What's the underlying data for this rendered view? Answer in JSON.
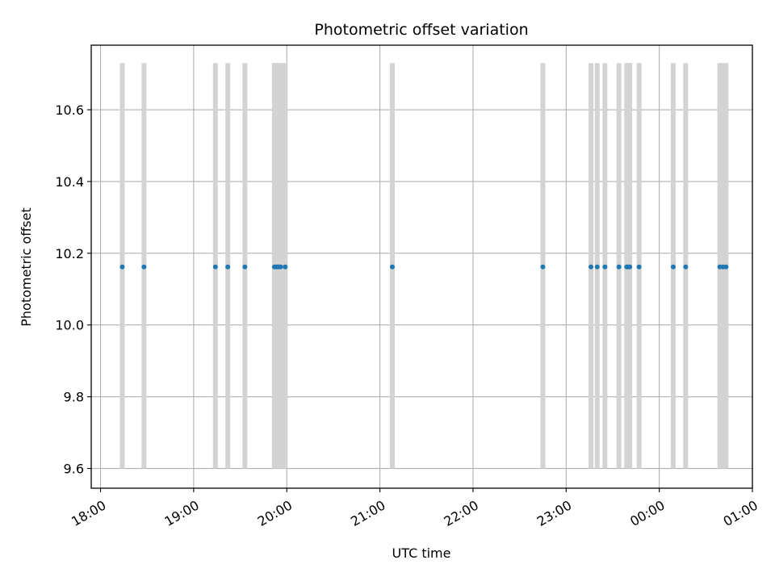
{
  "chart_data": {
    "type": "scatter",
    "title": "Photometric offset variation",
    "xlabel": "UTC time",
    "ylabel": "Photometric offset",
    "x_axis": {
      "kind": "time",
      "range": [
        "17:54",
        "01:00"
      ],
      "ticks": [
        "18:00",
        "19:00",
        "20:00",
        "21:00",
        "22:00",
        "23:00",
        "00:00",
        "01:00"
      ]
    },
    "y_axis": {
      "range": [
        9.545,
        10.78
      ],
      "ticks": [
        9.6,
        9.8,
        10.0,
        10.2,
        10.4,
        10.6
      ],
      "tick_labels": [
        "9.6",
        "9.8",
        "10.0",
        "10.2",
        "10.4",
        "10.6"
      ]
    },
    "grid": true,
    "band_range": [
      9.6,
      10.73
    ],
    "band_color": "#d3d3d3",
    "point_color": "#1f77b4",
    "series": [
      {
        "values": [
          10.162,
          10.162,
          10.162,
          10.162,
          10.162,
          10.162,
          10.162,
          10.162,
          10.162,
          10.162,
          10.162,
          10.162,
          10.162,
          10.162,
          10.162,
          10.162,
          10.162,
          10.162,
          10.162,
          10.162,
          10.162,
          10.162,
          10.162,
          10.162,
          10.162,
          10.162
        ],
        "x": [
          "18:14",
          "18:28",
          "19:14",
          "19:22",
          "19:33",
          "19:52",
          "19:53",
          "19:54",
          "19:55",
          "19:56",
          "19:59",
          "21:08",
          "22:45",
          "23:16",
          "23:20",
          "23:25",
          "23:34",
          "23:39",
          "23:40",
          "23:41",
          "23:47",
          "00:09",
          "00:17",
          "00:39",
          "00:41",
          "00:43"
        ]
      }
    ]
  }
}
